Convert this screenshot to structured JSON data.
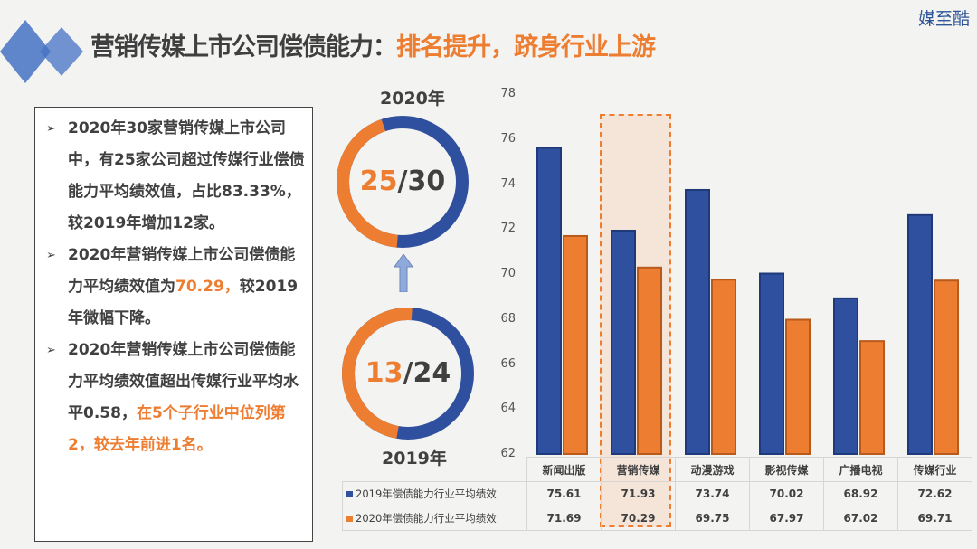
{
  "header": {
    "title_main": "营销传媒上市公司偿债能力：",
    "title_highlight": "排名提升，跻身行业上游",
    "brand": "媒至酷"
  },
  "summary": {
    "bullet": "➢",
    "p1": "2020年30家营销传媒上市公司中，有25家公司超过传媒行业偿债能力平均绩效值，占比83.33%，较2019年增加12家。",
    "p2a": "2020年营销传媒上市公司偿债能力平均绩效值为",
    "p2b": "70.29，",
    "p2c": "较2019年微幅下降。",
    "p3a": "2020年营销传媒上市公司偿债能力平均绩效值超出传媒行业平均水平0.58，",
    "p3b": "在5个子行业中位列第2，较去年前进1名。"
  },
  "donuts": [
    {
      "year": "2020年",
      "count": "25",
      "total": "/30"
    },
    {
      "year": "2019年",
      "count": "13",
      "total": "/24"
    }
  ],
  "colors": {
    "blue": "#2f4f9f",
    "orange": "#ed7d31"
  },
  "chart_data": {
    "type": "bar",
    "categories": [
      "新闻出版",
      "营销传媒",
      "动漫游戏",
      "影视传媒",
      "广播电视",
      "传媒行业"
    ],
    "series": [
      {
        "name": "2019年偿债能力行业平均绩效",
        "values": [
          75.61,
          71.93,
          73.74,
          70.02,
          68.92,
          72.62
        ]
      },
      {
        "name": "2020年偿债能力行业平均绩效",
        "values": [
          71.69,
          70.29,
          69.75,
          67.97,
          67.02,
          69.71
        ]
      }
    ],
    "ylim": [
      62,
      78
    ],
    "yticks": [
      "62",
      "64",
      "66",
      "68",
      "70",
      "72",
      "74",
      "76",
      "78"
    ],
    "highlight": "营销传媒"
  }
}
